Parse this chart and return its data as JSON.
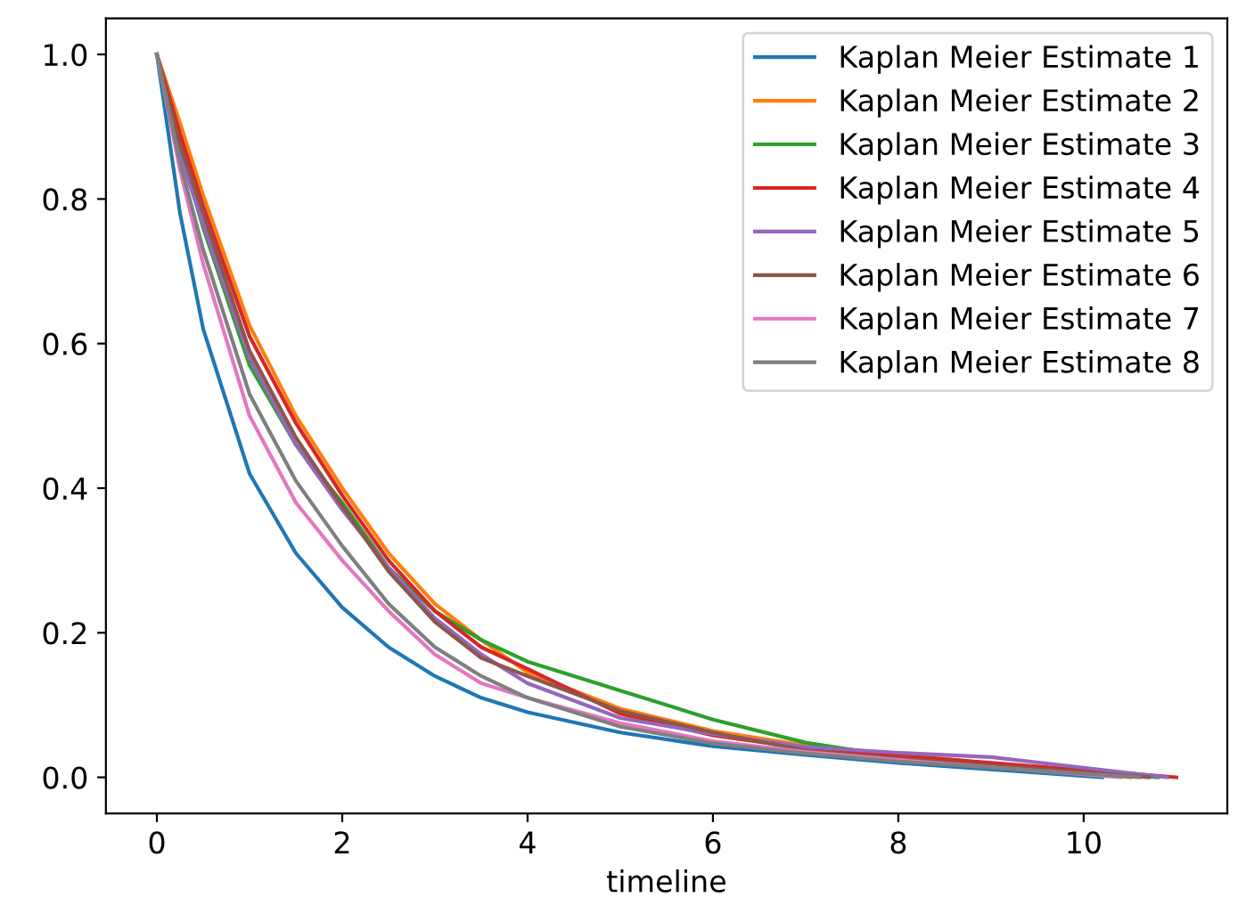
{
  "chart_data": {
    "type": "line",
    "xlabel": "timeline",
    "xlim": [
      -0.55,
      11.55
    ],
    "xticks": [
      0,
      2,
      4,
      6,
      8,
      10
    ],
    "ylim": [
      -0.05,
      1.05
    ],
    "yticks": [
      {
        "value": 0,
        "label": "0.0"
      },
      {
        "value": 0.2,
        "label": "0.2"
      },
      {
        "value": 0.4,
        "label": "0.4"
      },
      {
        "value": 0.6,
        "label": "0.6"
      },
      {
        "value": 0.8,
        "label": "0.8"
      },
      {
        "value": 1,
        "label": "1.0"
      }
    ],
    "legend": "top right",
    "series": [
      {
        "name": "Kaplan Meier Estimate 1",
        "color": "#1f77b4",
        "x": [
          0,
          0.25,
          0.5,
          1,
          1.5,
          2,
          2.5,
          3,
          3.5,
          4,
          5,
          6,
          7,
          8,
          10.2
        ],
        "values": [
          1,
          0.78,
          0.62,
          0.42,
          0.31,
          0.235,
          0.18,
          0.14,
          0.11,
          0.09,
          0.062,
          0.043,
          0.031,
          0.02,
          0
        ]
      },
      {
        "name": "Kaplan Meier Estimate 2",
        "color": "#ff7f0e",
        "x": [
          0,
          0.25,
          0.5,
          1,
          1.5,
          2,
          2.5,
          3,
          3.5,
          4,
          5,
          6,
          7,
          8,
          10.5
        ],
        "values": [
          1,
          0.905,
          0.805,
          0.625,
          0.5,
          0.4,
          0.31,
          0.24,
          0.19,
          0.145,
          0.095,
          0.064,
          0.044,
          0.032,
          0
        ]
      },
      {
        "name": "Kaplan Meier Estimate 3",
        "color": "#2ca02c",
        "x": [
          0,
          0.25,
          0.5,
          1,
          1.5,
          2,
          2.5,
          3,
          3.5,
          4,
          5,
          6,
          7,
          8,
          10.8
        ],
        "values": [
          1,
          0.87,
          0.76,
          0.57,
          0.46,
          0.38,
          0.29,
          0.23,
          0.19,
          0.16,
          0.12,
          0.08,
          0.048,
          0.028,
          0
        ]
      },
      {
        "name": "Kaplan Meier Estimate 4",
        "color": "#d62728",
        "x": [
          0,
          0.25,
          0.5,
          1,
          1.5,
          2,
          2.5,
          3,
          3.5,
          4,
          5,
          6,
          7,
          8,
          11
        ],
        "values": [
          1,
          0.89,
          0.79,
          0.61,
          0.49,
          0.39,
          0.3,
          0.23,
          0.18,
          0.15,
          0.088,
          0.058,
          0.04,
          0.03,
          0
        ]
      },
      {
        "name": "Kaplan Meier Estimate 5",
        "color": "#9467bd",
        "x": [
          0,
          0.25,
          0.5,
          1,
          1.5,
          2,
          2.5,
          3,
          3.5,
          4,
          5,
          6,
          7,
          8,
          9,
          10.9
        ],
        "values": [
          1,
          0.86,
          0.765,
          0.58,
          0.46,
          0.37,
          0.29,
          0.22,
          0.17,
          0.13,
          0.082,
          0.06,
          0.042,
          0.034,
          0.028,
          0
        ]
      },
      {
        "name": "Kaplan Meier Estimate 6",
        "color": "#8c564b",
        "x": [
          0,
          0.25,
          0.5,
          1,
          1.5,
          2,
          2.5,
          3,
          3.5,
          4,
          5,
          6,
          7,
          8,
          10.7
        ],
        "values": [
          1,
          0.875,
          0.78,
          0.59,
          0.47,
          0.375,
          0.285,
          0.215,
          0.165,
          0.14,
          0.092,
          0.062,
          0.037,
          0.026,
          0
        ]
      },
      {
        "name": "Kaplan Meier Estimate 7",
        "color": "#e377c2",
        "x": [
          0,
          0.25,
          0.5,
          1,
          1.5,
          2,
          2.5,
          3,
          3.5,
          4,
          5,
          6,
          7,
          8,
          10.4
        ],
        "values": [
          1,
          0.84,
          0.71,
          0.5,
          0.38,
          0.3,
          0.23,
          0.17,
          0.13,
          0.11,
          0.075,
          0.05,
          0.035,
          0.024,
          0
        ]
      },
      {
        "name": "Kaplan Meier Estimate 8",
        "color": "#7f7f7f",
        "x": [
          0,
          0.25,
          0.5,
          1,
          1.5,
          2,
          2.5,
          3,
          3.5,
          4,
          5,
          6,
          7,
          8,
          10.6
        ],
        "values": [
          1,
          0.85,
          0.73,
          0.53,
          0.41,
          0.32,
          0.24,
          0.18,
          0.14,
          0.11,
          0.07,
          0.047,
          0.033,
          0.022,
          0
        ]
      }
    ]
  }
}
